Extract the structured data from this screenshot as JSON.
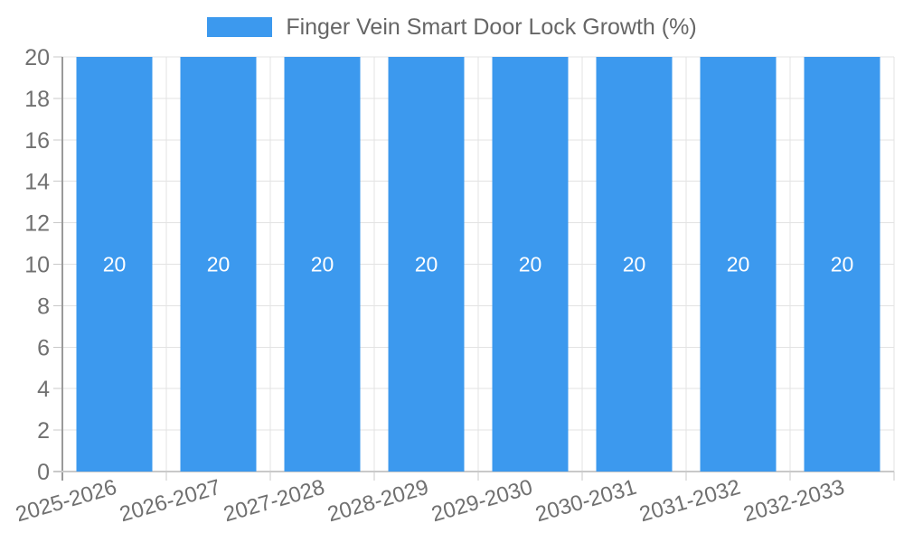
{
  "legend": {
    "label": "Finger Vein Smart Door Lock Growth (%)"
  },
  "chart_data": {
    "type": "bar",
    "title": "Finger Vein Smart Door Lock Growth (%)",
    "categories": [
      "2025-2026",
      "2026-2027",
      "2027-2028",
      "2028-2029",
      "2029-2030",
      "2030-2031",
      "2031-2032",
      "2032-2033"
    ],
    "values": [
      20,
      20,
      20,
      20,
      20,
      20,
      20,
      20
    ],
    "bar_labels": [
      "20",
      "20",
      "20",
      "20",
      "20",
      "20",
      "20",
      "20"
    ],
    "xlabel": "",
    "ylabel": "",
    "ylim": [
      0,
      20
    ],
    "ytick_step": 2,
    "yticks": [
      0,
      2,
      4,
      6,
      8,
      10,
      12,
      14,
      16,
      18,
      20
    ],
    "grid": true,
    "legend_position": "top-center",
    "colors": {
      "bar": "#3c99ee",
      "bar_label": "#ffffff",
      "axis_text": "#707070",
      "legend_text": "#666666",
      "grid": "#e3e3e3",
      "tick": "#c9c9c9",
      "axis_line": "#9a9a9a",
      "background": "#ffffff"
    }
  }
}
